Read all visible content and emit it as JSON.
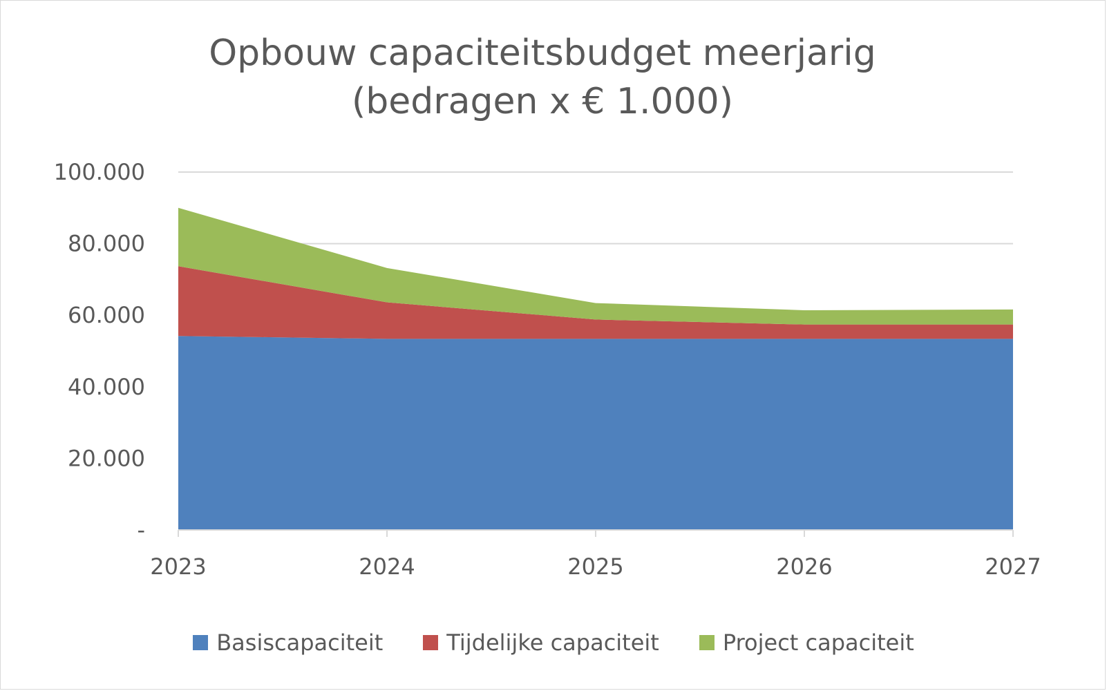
{
  "chart_data": {
    "type": "area",
    "stacked": true,
    "title_lines": [
      "Opbouw capaciteitsbudget meerjarig",
      "(bedragen x € 1.000)"
    ],
    "x": [
      "2023",
      "2024",
      "2025",
      "2026",
      "2027"
    ],
    "series": [
      {
        "name": "Basiscapaciteit",
        "color": "#4f81bd",
        "values": [
          54200,
          53400,
          53400,
          53400,
          53400
        ]
      },
      {
        "name": "Tijdelijke capaciteit",
        "color": "#c0504d",
        "values": [
          19500,
          10200,
          5400,
          4000,
          4000
        ]
      },
      {
        "name": "Project capaciteit",
        "color": "#9bbb59",
        "values": [
          16300,
          9600,
          4600,
          4000,
          4200
        ]
      }
    ],
    "y_ticks": [
      {
        "value": 0,
        "label": "-"
      },
      {
        "value": 20000,
        "label": "20.000"
      },
      {
        "value": 40000,
        "label": "40.000"
      },
      {
        "value": 60000,
        "label": "60.000"
      },
      {
        "value": 80000,
        "label": "80.000"
      },
      {
        "value": 100000,
        "label": "100.000"
      }
    ],
    "ylim": [
      0,
      100000
    ],
    "grid": true,
    "legend_position": "bottom",
    "gridline_color": "#d9d9d9"
  }
}
